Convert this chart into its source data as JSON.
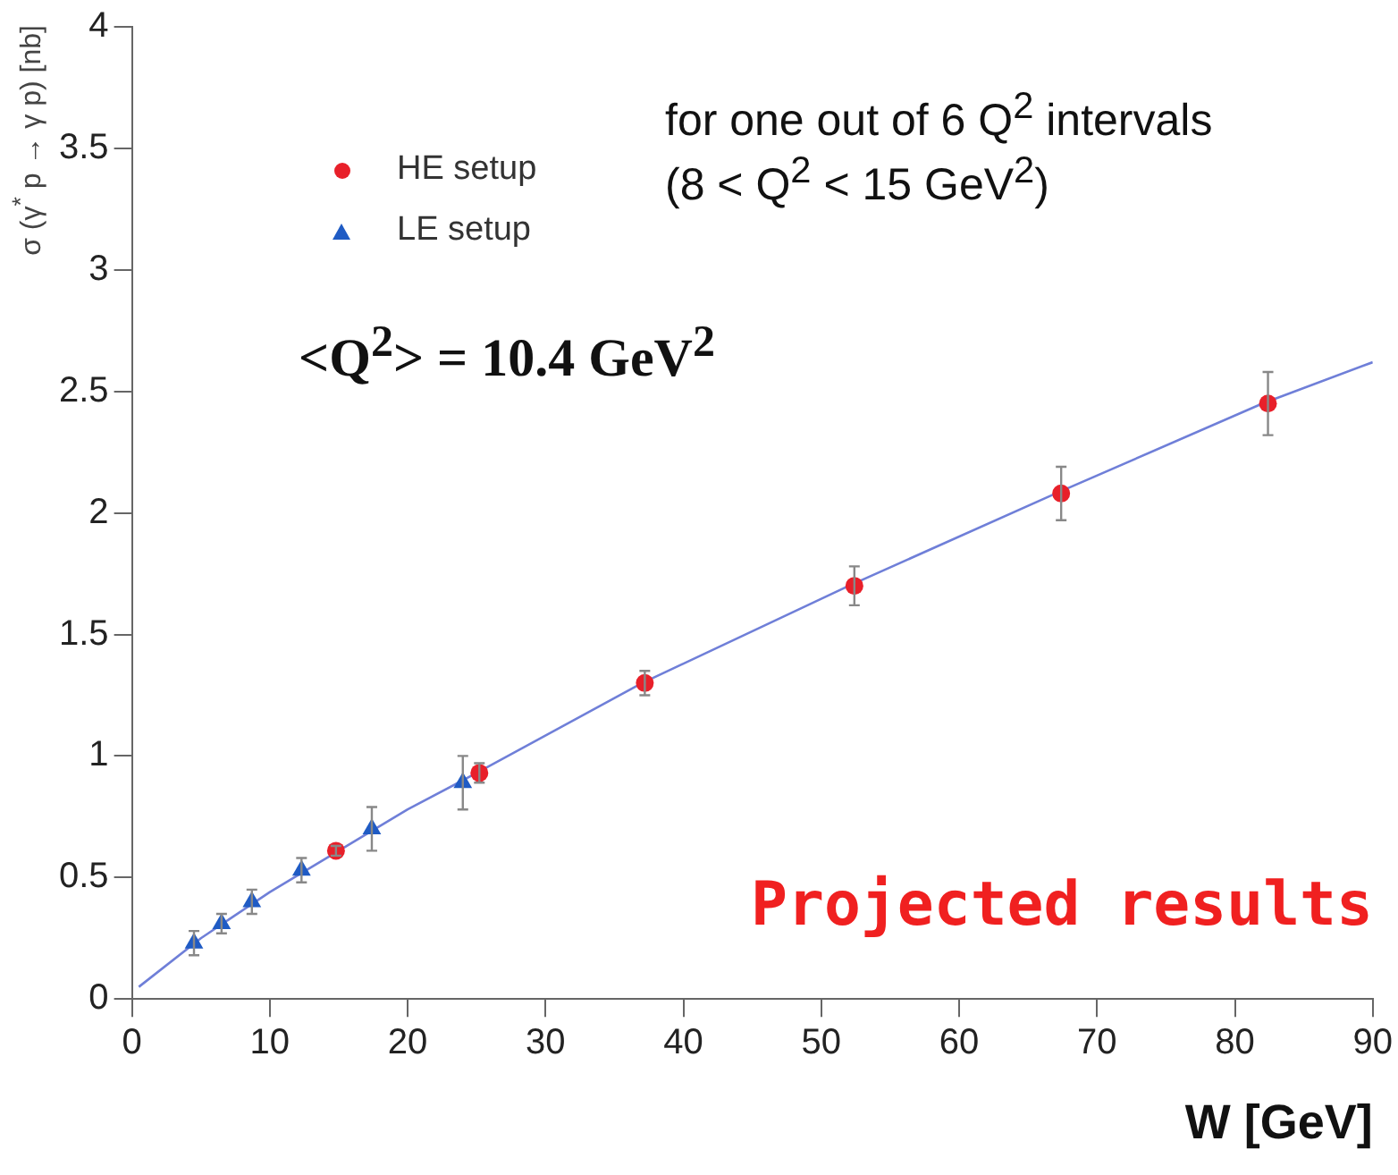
{
  "chart_data": {
    "type": "scatter",
    "xlabel": "W [GeV]",
    "ylabel": "σ (γ$^{*}$ p → γ p) [nb]",
    "annotations": [
      "for one out of 6 Q$^{2}$ intervals",
      "(8 < Q$^{2}$ < 15 GeV$^{2}$)",
      "<Q$^{2}$> = 10.4 GeV$^{2}$",
      "Projected results"
    ],
    "xlim": [
      0,
      90
    ],
    "xticks": [
      0,
      10,
      20,
      30,
      40,
      50,
      60,
      70,
      80,
      90
    ],
    "ylim": [
      0,
      4
    ],
    "yticks": [
      0,
      0.5,
      1,
      1.5,
      2,
      2.5,
      3,
      3.5,
      4
    ],
    "grid": false,
    "legend": "top left",
    "series": [
      {
        "name": "HE setup",
        "color": "#e8202a",
        "marker": "circle",
        "x": [
          14.8,
          25.2,
          37.2,
          52.4,
          67.4,
          82.4
        ],
        "values": [
          0.61,
          0.93,
          1.3,
          1.7,
          2.08,
          2.45
        ],
        "errors": [
          0.02,
          0.04,
          0.05,
          0.08,
          0.11,
          0.13
        ]
      },
      {
        "name": "LE setup",
        "color": "#1f5bc4",
        "marker": "triangle",
        "x": [
          4.5,
          6.5,
          8.7,
          12.3,
          17.4,
          24
        ],
        "values": [
          0.23,
          0.31,
          0.4,
          0.53,
          0.7,
          0.89
        ],
        "errors": [
          0.05,
          0.04,
          0.05,
          0.05,
          0.09,
          0.11
        ]
      },
      {
        "type": "line",
        "color": "#6f7fd8",
        "marker": "none",
        "line_style": "solid",
        "x": [
          0.5,
          5,
          10,
          15,
          20,
          25,
          37,
          52,
          67,
          82,
          90
        ],
        "values": [
          0.05,
          0.25,
          0.44,
          0.61,
          0.78,
          0.93,
          1.3,
          1.7,
          2.08,
          2.45,
          2.62
        ]
      }
    ]
  }
}
